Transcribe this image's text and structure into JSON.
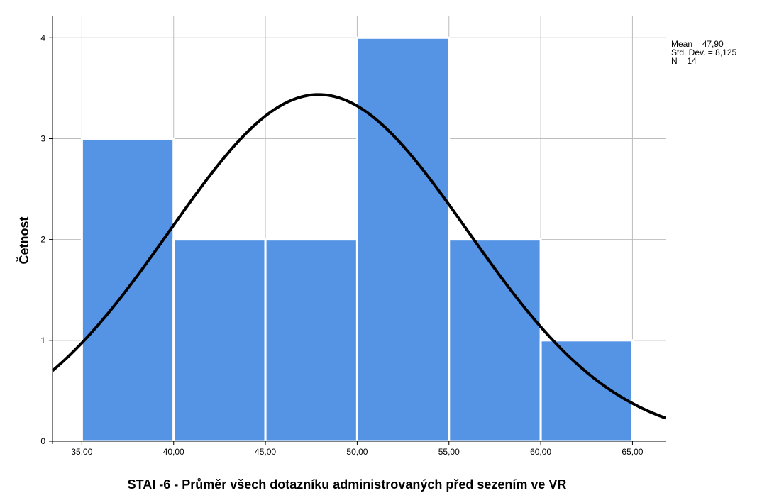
{
  "chart_data": {
    "type": "bar",
    "subtype": "histogram",
    "bins": [
      {
        "from": 35,
        "to": 40,
        "count": 3
      },
      {
        "from": 40,
        "to": 45,
        "count": 2
      },
      {
        "from": 45,
        "to": 50,
        "count": 2
      },
      {
        "from": 50,
        "to": 55,
        "count": 4
      },
      {
        "from": 55,
        "to": 60,
        "count": 2
      },
      {
        "from": 60,
        "to": 65,
        "count": 1
      }
    ],
    "x_ticks": [
      35,
      40,
      45,
      50,
      55,
      60,
      65
    ],
    "x_tick_labels": [
      "35,00",
      "40,00",
      "45,00",
      "50,00",
      "55,00",
      "60,00",
      "65,00"
    ],
    "y_ticks": [
      0,
      1,
      2,
      3,
      4
    ],
    "y_tick_labels": [
      "0",
      "1",
      "2",
      "3",
      "4"
    ],
    "xlim": [
      33.4,
      66.8
    ],
    "ylim": [
      0,
      4.22
    ],
    "xlabel": "STAI -6 - Průměr všech dotazníku administrovaných před sezením ve VR",
    "ylabel": "Četnost",
    "grid": true,
    "normal_curve": {
      "mean": 47.9,
      "sd": 8.125,
      "n": 14,
      "bin_width": 5
    },
    "stats_lines": [
      "Mean = 47,90",
      "Std. Dev. = 8,125",
      "N = 14"
    ],
    "colors": {
      "bar_fill": "#5594e5",
      "bar_edge": "#ffffff",
      "curve": "#000000",
      "grid": "#bdbdbd",
      "axis": "#000000"
    }
  }
}
